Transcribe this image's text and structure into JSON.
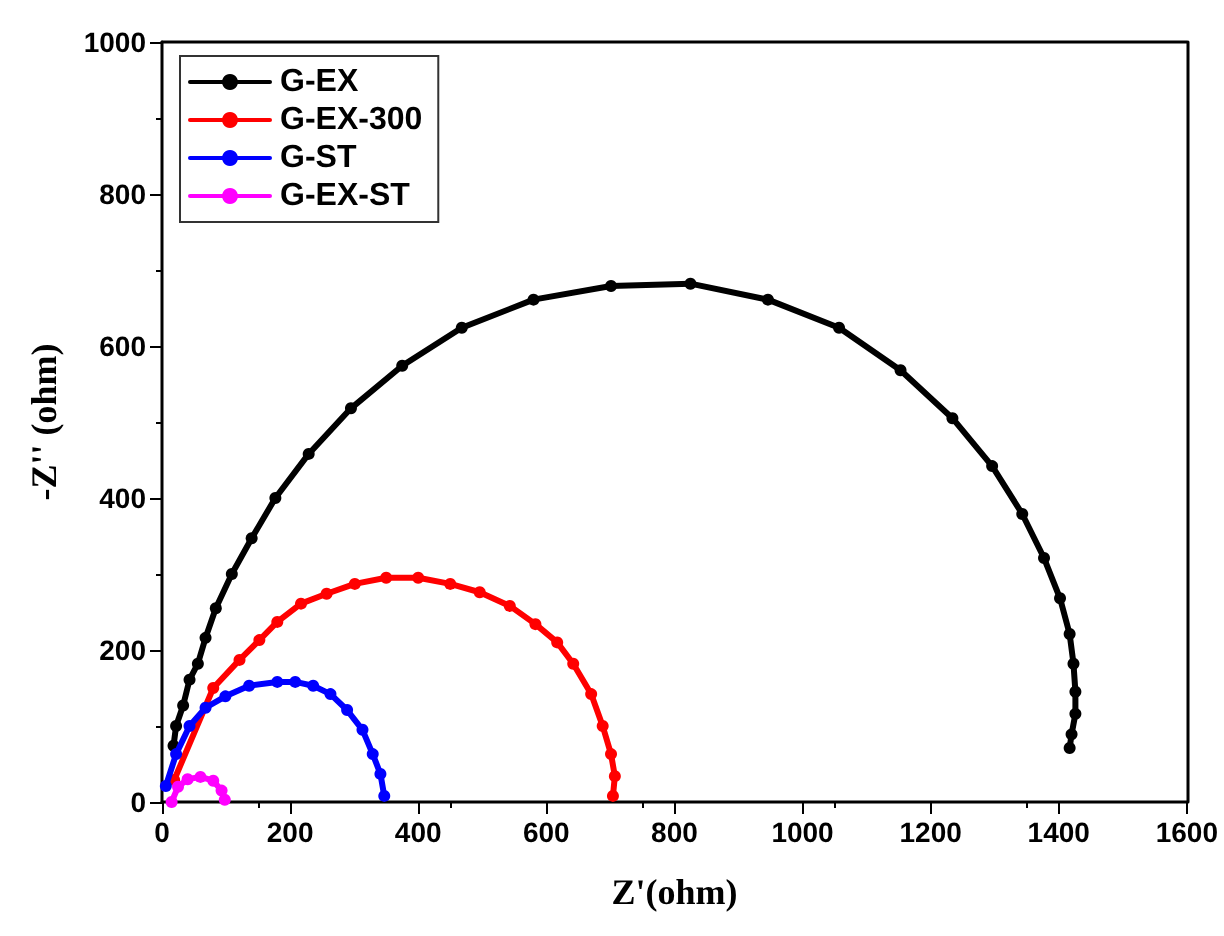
{
  "chart_data": {
    "type": "line",
    "xlabel": "Z'(ohm)",
    "ylabel": "-Z'' (ohm)",
    "xlim": [
      0,
      1600
    ],
    "xticks": [
      0,
      200,
      400,
      600,
      800,
      1000,
      1200,
      1400,
      1600
    ],
    "ylim": [
      0,
      1000
    ],
    "yticks": [
      0,
      200,
      400,
      600,
      800,
      1000
    ],
    "grid": false,
    "legend": "top left",
    "marker": "circle",
    "line_style": "solid",
    "series": [
      {
        "name": "G-EX",
        "color": "#000000",
        "x": [
          18,
          22,
          33,
          43,
          56,
          68,
          84,
          109,
          140,
          177,
          229,
          295,
          375,
          468,
          580,
          701,
          825,
          946,
          1057,
          1153,
          1234,
          1296,
          1343,
          1377,
          1402,
          1417,
          1423,
          1426,
          1426,
          1420,
          1417
        ],
        "values": [
          74,
          100,
          127,
          161,
          182,
          216,
          255,
          300,
          347,
          400,
          458,
          518,
          574,
          624,
          661,
          679,
          682,
          661,
          624,
          568,
          505,
          442,
          379,
          321,
          268,
          221,
          182,
          145,
          116,
          89,
          71
        ]
      },
      {
        "name": "G-EX-300",
        "color": "#ff0000",
        "x": [
          19,
          80,
          121,
          152,
          180,
          217,
          257,
          301,
          350,
          400,
          450,
          496,
          543,
          583,
          617,
          642,
          670,
          688,
          701,
          707,
          704
        ],
        "values": [
          29,
          150,
          187,
          213,
          237,
          261,
          274,
          287,
          295,
          295,
          287,
          276,
          258,
          234,
          210,
          182,
          142,
          100,
          63,
          34,
          8
        ]
      },
      {
        "name": "G-ST",
        "color": "#0000ff",
        "x": [
          6,
          22,
          43,
          68,
          99,
          136,
          180,
          208,
          236,
          263,
          289,
          313,
          329,
          341,
          347
        ],
        "values": [
          21,
          63,
          100,
          124,
          139,
          153,
          158,
          158,
          153,
          142,
          121,
          95,
          63,
          37,
          8
        ]
      },
      {
        "name": "G-EX-ST",
        "color": "#ff00ff",
        "x": [
          15,
          25,
          40,
          60,
          80,
          93,
          98
        ],
        "values": [
          0,
          20,
          30,
          33,
          28,
          15,
          3
        ]
      }
    ]
  }
}
